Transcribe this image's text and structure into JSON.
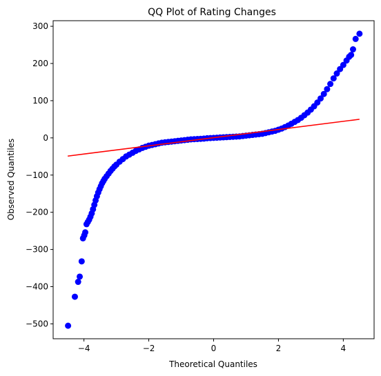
{
  "chart_data": {
    "type": "scatter",
    "title": "QQ Plot of Rating Changes",
    "xlabel": "Theoretical Quantiles",
    "ylabel": "Observed Quantiles",
    "xlim": [
      -4.95,
      4.95
    ],
    "ylim": [
      -540,
      315
    ],
    "x_ticks": [
      -4,
      -2,
      0,
      2,
      4
    ],
    "x_tick_labels": [
      "−4",
      "−2",
      "0",
      "2",
      "4"
    ],
    "y_ticks": [
      -500,
      -400,
      -300,
      -200,
      -100,
      0,
      100,
      200,
      300
    ],
    "y_tick_labels": [
      "−500",
      "−400",
      "−300",
      "−200",
      "−100",
      "0",
      "100",
      "200",
      "300"
    ],
    "grid": false,
    "legend": "none",
    "marker_color": "#0000ff",
    "line_color": "#ff0000",
    "series": [
      {
        "type": "scatter",
        "points": [
          [
            -4.49,
            -505
          ],
          [
            -4.28,
            -427
          ],
          [
            -4.18,
            -387
          ],
          [
            -4.13,
            -373
          ],
          [
            -4.07,
            -332
          ],
          [
            -4.03,
            -270
          ],
          [
            -3.99,
            -262
          ],
          [
            -3.96,
            -254
          ],
          [
            -3.92,
            -232
          ],
          [
            -3.88,
            -226
          ],
          [
            -3.84,
            -220
          ],
          [
            -3.8,
            -212
          ],
          [
            -3.76,
            -203
          ],
          [
            -3.72,
            -192
          ],
          [
            -3.68,
            -180
          ],
          [
            -3.64,
            -168
          ],
          [
            -3.6,
            -157
          ],
          [
            -3.56,
            -147
          ],
          [
            -3.52,
            -138
          ],
          [
            -3.48,
            -130
          ],
          [
            -3.44,
            -122
          ],
          [
            -3.4,
            -116
          ],
          [
            -3.36,
            -110
          ],
          [
            -3.3,
            -103
          ],
          [
            -3.24,
            -96
          ],
          [
            -3.18,
            -89
          ],
          [
            -3.12,
            -83
          ],
          [
            -3.06,
            -77
          ],
          [
            -3.0,
            -72
          ],
          [
            -2.9,
            -64
          ],
          [
            -2.8,
            -57
          ],
          [
            -2.7,
            -50
          ],
          [
            -2.6,
            -45
          ],
          [
            -2.5,
            -40
          ],
          [
            -2.4,
            -35
          ],
          [
            -2.3,
            -31
          ],
          [
            -2.2,
            -27
          ],
          [
            -2.1,
            -24
          ],
          [
            -2.0,
            -21
          ],
          [
            -1.9,
            -19
          ],
          [
            -1.8,
            -17
          ],
          [
            -1.7,
            -15
          ],
          [
            -1.6,
            -13
          ],
          [
            -1.5,
            -12
          ],
          [
            -1.4,
            -11
          ],
          [
            -1.3,
            -10
          ],
          [
            -1.2,
            -9
          ],
          [
            -1.1,
            -8
          ],
          [
            -1.0,
            -7
          ],
          [
            -0.9,
            -6
          ],
          [
            -0.8,
            -5
          ],
          [
            -0.7,
            -4
          ],
          [
            -0.6,
            -3.5
          ],
          [
            -0.5,
            -3
          ],
          [
            -0.4,
            -2.5
          ],
          [
            -0.3,
            -2
          ],
          [
            -0.2,
            -1
          ],
          [
            -0.1,
            -0.5
          ],
          [
            0.0,
            0
          ],
          [
            0.1,
            0.5
          ],
          [
            0.2,
            1
          ],
          [
            0.3,
            1.5
          ],
          [
            0.4,
            2
          ],
          [
            0.5,
            2.5
          ],
          [
            0.6,
            3
          ],
          [
            0.7,
            3.5
          ],
          [
            0.8,
            4
          ],
          [
            0.9,
            5
          ],
          [
            1.0,
            6
          ],
          [
            1.1,
            7
          ],
          [
            1.2,
            8
          ],
          [
            1.3,
            9
          ],
          [
            1.4,
            10
          ],
          [
            1.5,
            11
          ],
          [
            1.6,
            13
          ],
          [
            1.7,
            15
          ],
          [
            1.8,
            17
          ],
          [
            1.9,
            19
          ],
          [
            2.0,
            22
          ],
          [
            2.1,
            25
          ],
          [
            2.2,
            29
          ],
          [
            2.3,
            33
          ],
          [
            2.4,
            38
          ],
          [
            2.5,
            43
          ],
          [
            2.6,
            48
          ],
          [
            2.7,
            54
          ],
          [
            2.8,
            61
          ],
          [
            2.9,
            68
          ],
          [
            3.0,
            76
          ],
          [
            3.1,
            85
          ],
          [
            3.2,
            95
          ],
          [
            3.3,
            106
          ],
          [
            3.4,
            118
          ],
          [
            3.5,
            131
          ],
          [
            3.6,
            145
          ],
          [
            3.7,
            160
          ],
          [
            3.8,
            173
          ],
          [
            3.9,
            185
          ],
          [
            4.0,
            196
          ],
          [
            4.1,
            208
          ],
          [
            4.18,
            218
          ],
          [
            4.24,
            223
          ],
          [
            4.3,
            238
          ],
          [
            4.38,
            266
          ],
          [
            4.5,
            280
          ]
        ]
      },
      {
        "type": "line",
        "points": [
          [
            -4.5,
            -49
          ],
          [
            4.5,
            50
          ]
        ]
      }
    ]
  }
}
